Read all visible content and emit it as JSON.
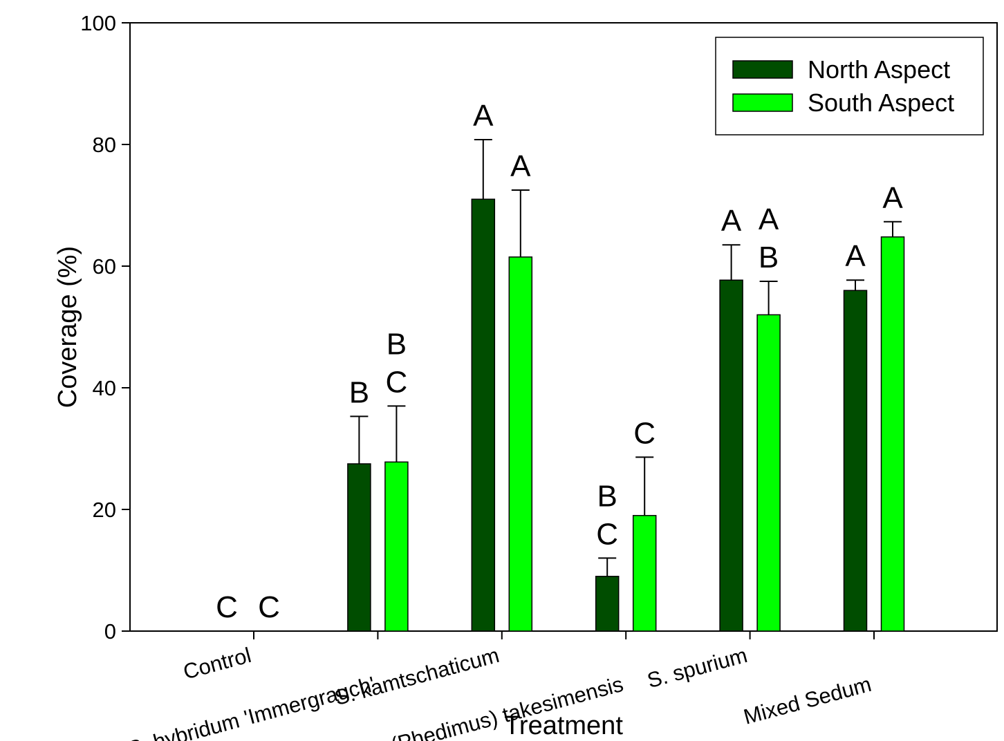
{
  "chart_data": {
    "type": "bar",
    "title": "",
    "xlabel": "Treatment",
    "ylabel": "Coverage (%)",
    "ylim": [
      0,
      100
    ],
    "yticks": [
      "0",
      "20",
      "40",
      "60",
      "80",
      "100"
    ],
    "categories": [
      "Control",
      "S. hybridum 'Immergrauch'",
      "S. kamtschaticum",
      "S. (Phedimus) takesimensis",
      "S. spurium",
      "Mixed Sedum"
    ],
    "series": [
      {
        "name": "North Aspect",
        "color": "#004d00",
        "values": [
          0,
          27.5,
          71,
          9,
          57.7,
          56
        ],
        "error_upper": [
          0,
          35.3,
          80.8,
          12,
          63.5,
          57.7
        ],
        "letters": [
          "C",
          "B",
          "A",
          "B\nC",
          "A",
          "A"
        ]
      },
      {
        "name": "South Aspect",
        "color": "#00ff00",
        "values": [
          0,
          27.8,
          61.5,
          19,
          52,
          64.8
        ],
        "error_upper": [
          0,
          37,
          72.5,
          28.6,
          57.5,
          67.3
        ],
        "letters": [
          "C",
          "B\nC",
          "A",
          "C",
          "A\nB",
          "A"
        ]
      }
    ],
    "grid": false,
    "legend_position": "top-right"
  }
}
